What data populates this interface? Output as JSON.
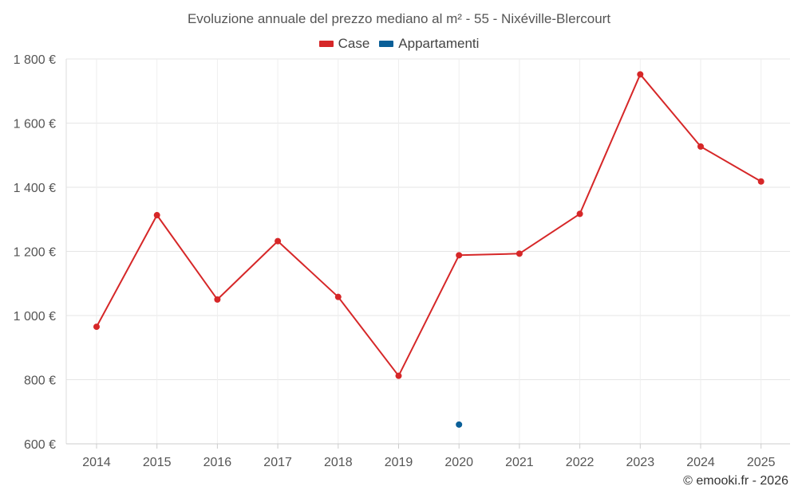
{
  "chart_data": {
    "type": "line",
    "title": "Evoluzione annuale del prezzo mediano al m² - 55 - Nixéville-Blercourt",
    "categories": [
      "2014",
      "2015",
      "2016",
      "2017",
      "2018",
      "2019",
      "2020",
      "2021",
      "2022",
      "2023",
      "2024",
      "2025"
    ],
    "series": [
      {
        "name": "Case",
        "color": "#d62728",
        "values": [
          965,
          1313,
          1050,
          1232,
          1058,
          812,
          1188,
          1193,
          1317,
          1752,
          1527,
          1418
        ]
      },
      {
        "name": "Appartamenti",
        "color": "#0a5f98",
        "values": [
          null,
          null,
          null,
          null,
          null,
          null,
          660,
          null,
          null,
          null,
          null,
          null
        ]
      }
    ],
    "ylim": [
      600,
      1800
    ],
    "yticks": [
      600,
      800,
      1000,
      1200,
      1400,
      1600,
      1800
    ],
    "ytick_labels": [
      "600 €",
      "800 €",
      "1 000 €",
      "1 200 €",
      "1 400 €",
      "1 600 €",
      "1 800 €"
    ],
    "xlabel": "",
    "ylabel": "",
    "grid": true
  },
  "credit": "© emooki.fr - 2026"
}
